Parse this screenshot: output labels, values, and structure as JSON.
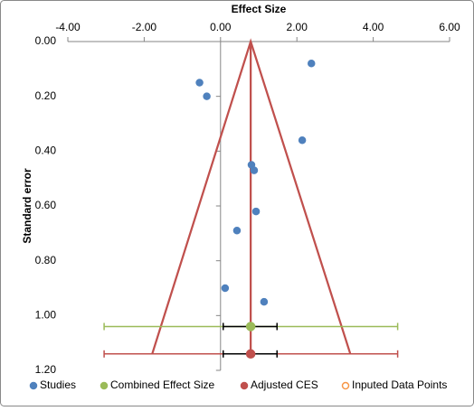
{
  "chart_data": {
    "type": "scatter",
    "x_title": "Effect Size",
    "y_title": "Standard error",
    "xlim": [
      -4,
      6
    ],
    "ylim": [
      0,
      1.2
    ],
    "y_inverted": true,
    "x_axis_position": "top",
    "xticks": [
      {
        "value": -4,
        "label": "-4.00"
      },
      {
        "value": -2,
        "label": "-2.00"
      },
      {
        "value": 0,
        "label": "0.00"
      },
      {
        "value": 2,
        "label": "2.00"
      },
      {
        "value": 4,
        "label": "4.00"
      },
      {
        "value": 6,
        "label": "6.00"
      }
    ],
    "yticks": [
      {
        "value": 0,
        "label": "0.00"
      },
      {
        "value": 0.2,
        "label": "0.20"
      },
      {
        "value": 0.4,
        "label": "0.40"
      },
      {
        "value": 0.6,
        "label": "0.60"
      },
      {
        "value": 0.8,
        "label": "0.80"
      },
      {
        "value": 1.0,
        "label": "1.00"
      },
      {
        "value": 1.2,
        "label": "1.20"
      }
    ],
    "legend": "bottom",
    "series": [
      {
        "name": "Studies",
        "color": "#4f81bd",
        "marker": "filled",
        "x": [
          2.38,
          -0.55,
          -0.36,
          2.14,
          0.81,
          0.88,
          0.93,
          0.43,
          0.12,
          1.14
        ],
        "y": [
          0.08,
          0.15,
          0.2,
          0.36,
          0.45,
          0.47,
          0.62,
          0.69,
          0.9,
          0.95
        ]
      },
      {
        "name": "Combined Effect Size",
        "color": "#9bbb59",
        "marker": "filled",
        "x": [
          0.79
        ],
        "y": [
          1.04
        ],
        "x_range": [
          -3.05,
          4.64
        ],
        "x_error_range": [
          0.07,
          1.48
        ]
      },
      {
        "name": "Adjusted CES",
        "color": "#c0504d",
        "marker": "filled",
        "x": [
          0.79
        ],
        "y": [
          1.14
        ],
        "x_range": [
          -3.05,
          4.64
        ],
        "x_error_range": [
          0.07,
          1.48
        ]
      },
      {
        "name": "Inputed Data Points",
        "color": "#f79646",
        "marker": "hollow",
        "x": [],
        "y": []
      }
    ],
    "lines": [
      {
        "color": "#c0504d",
        "x": [
          -1.79,
          0.79,
          3.4
        ],
        "y": [
          1.14,
          0,
          1.14
        ]
      },
      {
        "color": "#c0504d",
        "x": [
          0.79,
          0.79
        ],
        "y": [
          0,
          1.14
        ]
      }
    ]
  }
}
